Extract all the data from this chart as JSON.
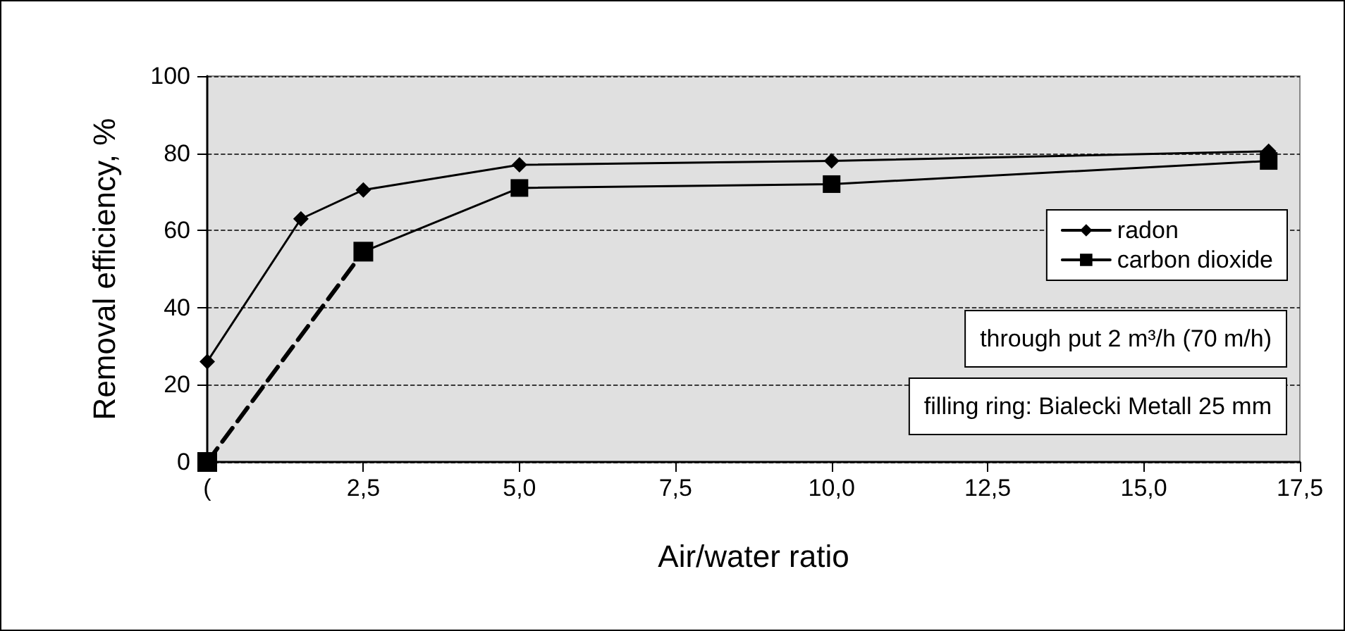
{
  "chart_data": {
    "type": "line",
    "xlabel": "Air/water ratio",
    "ylabel": "Removal efficiency, %",
    "xlim": [
      0,
      17.5
    ],
    "xticks": [
      {
        "value": 0,
        "label": "("
      },
      {
        "value": 2.5,
        "label": "2,5"
      },
      {
        "value": 5,
        "label": "5,0"
      },
      {
        "value": 7.5,
        "label": "7,5"
      },
      {
        "value": 10,
        "label": "10,0"
      },
      {
        "value": 12.5,
        "label": "12,5"
      },
      {
        "value": 15,
        "label": "15,0"
      },
      {
        "value": 17.5,
        "label": "17,5"
      }
    ],
    "ylim": [
      0,
      100
    ],
    "yticks": [
      0,
      20,
      40,
      60,
      80,
      100
    ],
    "series": [
      {
        "name": "radon",
        "color": "#000000",
        "marker": "diamond",
        "line_style": "solid",
        "x": [
          0,
          1.5,
          2.5,
          5,
          10,
          17
        ],
        "values": [
          26,
          63,
          70.5,
          77,
          78,
          80.5
        ]
      },
      {
        "name": "carbon dioxide",
        "color": "#000000",
        "marker": "square",
        "line_style": "solid",
        "x": [
          2.5,
          5,
          10,
          17
        ],
        "values": [
          54.5,
          71,
          72,
          78
        ]
      },
      {
        "color": "#000000",
        "marker": "square",
        "line_style": "dashed",
        "x": [
          0,
          2.5
        ],
        "values": [
          0,
          54.5
        ]
      }
    ],
    "annotations": [
      "through put 2 m³/h (70 m/h)",
      "filling ring: Bialecki Metall 25 mm"
    ],
    "grid": "y",
    "legend": "right"
  }
}
